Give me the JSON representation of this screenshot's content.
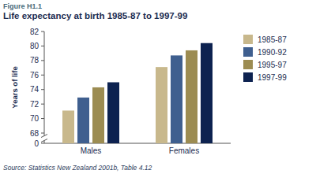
{
  "chart_data": {
    "type": "bar",
    "figure_label": "Figure H1.1",
    "title": "Life expectancy at birth 1985-87 to 1997-99",
    "y_label": "Years of life",
    "source": "Source: Statistics New Zealand 2001b, Table 4.12",
    "categories": [
      "Males",
      "Females"
    ],
    "series": [
      {
        "name": "1985-87",
        "color": "#c8b88c",
        "values": [
          71.1,
          77.1
        ]
      },
      {
        "name": "1990-92",
        "color": "#3f5f8f",
        "values": [
          72.9,
          78.7
        ]
      },
      {
        "name": "1995-97",
        "color": "#9c8c52",
        "values": [
          74.3,
          79.4
        ]
      },
      {
        "name": "1997-99",
        "color": "#0d2250",
        "values": [
          75.0,
          80.4
        ]
      }
    ],
    "ylim": [
      0,
      82
    ],
    "yticks": [
      0,
      68,
      70,
      72,
      74,
      76,
      78,
      80,
      82
    ],
    "grid": false,
    "legend": "right"
  }
}
